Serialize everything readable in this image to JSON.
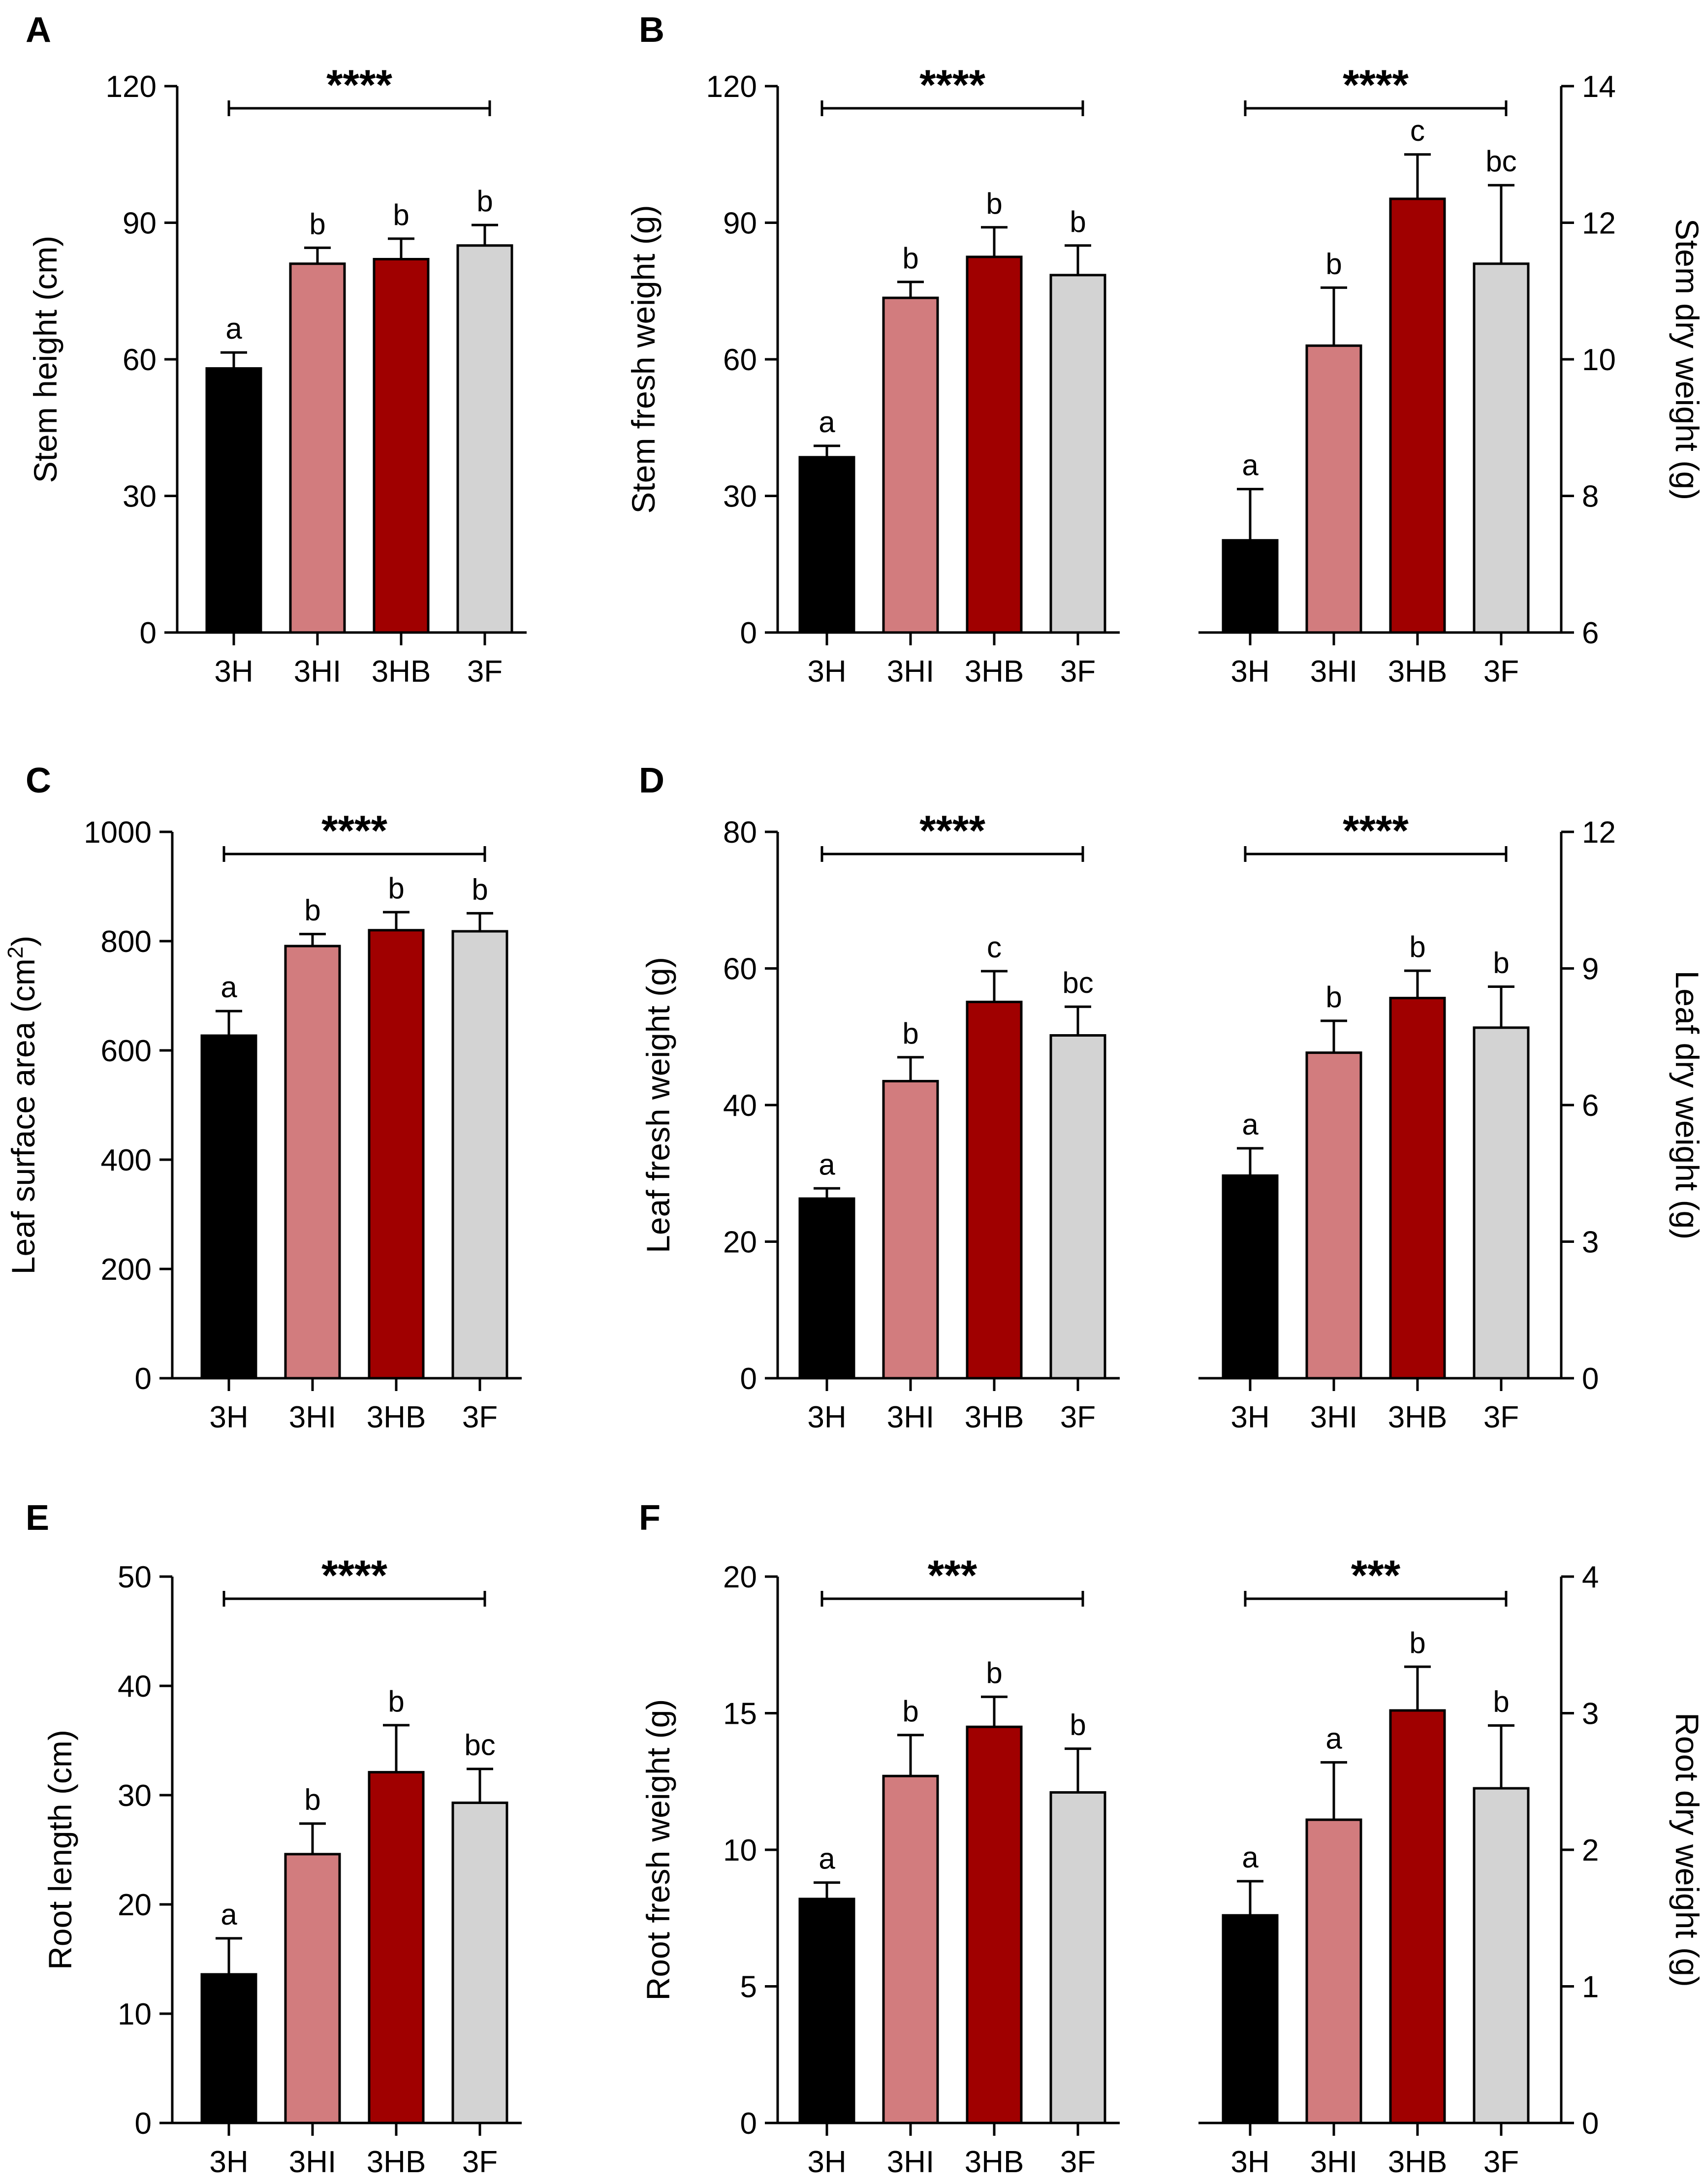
{
  "chart_data": [
    {
      "id": "A",
      "type": "bar",
      "panel_letter": "A",
      "ylabel": "Stem height (cm)",
      "ylabel_sup": "",
      "ylim": [
        0,
        120
      ],
      "yticks": [
        0,
        30,
        60,
        90,
        120
      ],
      "categories": [
        "3H",
        "3HI",
        "3HB",
        "3F"
      ],
      "values": [
        58,
        81,
        82,
        85
      ],
      "errors": [
        3.5,
        3.5,
        4.5,
        4.5
      ],
      "letters": [
        "a",
        "b",
        "b",
        "b"
      ],
      "significance": "****"
    },
    {
      "id": "B-fresh",
      "type": "bar",
      "panel_letter": "B",
      "ylabel": "Stem fresh weight (g)",
      "ylabel_sup": "",
      "ylim": [
        0,
        120
      ],
      "yticks": [
        0,
        30,
        60,
        90,
        120
      ],
      "categories": [
        "3H",
        "3HI",
        "3HB",
        "3F"
      ],
      "values": [
        38.5,
        73.5,
        82.5,
        78.5
      ],
      "errors": [
        2.5,
        3.5,
        6.5,
        6.5
      ],
      "letters": [
        "a",
        "b",
        "b",
        "b"
      ],
      "significance": "****"
    },
    {
      "id": "B-dry",
      "type": "bar",
      "panel_letter": "",
      "ylabel": "Stem dry weight (g)",
      "ylabel_sup": "",
      "ylim": [
        6,
        14
      ],
      "yticks": [
        6,
        8,
        10,
        12,
        14
      ],
      "categories": [
        "3H",
        "3HI",
        "3HB",
        "3F"
      ],
      "values": [
        7.35,
        10.2,
        12.35,
        11.4
      ],
      "errors": [
        0.75,
        0.85,
        0.65,
        1.15
      ],
      "letters": [
        "a",
        "b",
        "c",
        "bc"
      ],
      "significance": "****"
    },
    {
      "id": "C",
      "type": "bar",
      "panel_letter": "C",
      "ylabel": "Leaf surface area (cm",
      "ylabel_sup": "2",
      "ylim": [
        0,
        1000
      ],
      "yticks": [
        0,
        200,
        400,
        600,
        800,
        1000
      ],
      "categories": [
        "3H",
        "3HI",
        "3HB",
        "3F"
      ],
      "values": [
        627,
        791,
        820,
        818
      ],
      "errors": [
        45,
        22,
        33,
        33
      ],
      "letters": [
        "a",
        "b",
        "b",
        "b"
      ],
      "significance": "****"
    },
    {
      "id": "D-fresh",
      "type": "bar",
      "panel_letter": "D",
      "ylabel": "Leaf fresh weight (g)",
      "ylabel_sup": "",
      "ylim": [
        0,
        80
      ],
      "yticks": [
        0,
        20,
        40,
        60,
        80
      ],
      "categories": [
        "3H",
        "3HI",
        "3HB",
        "3F"
      ],
      "values": [
        26.3,
        43.5,
        55.1,
        50.2
      ],
      "errors": [
        1.5,
        3.5,
        4.5,
        4.2
      ],
      "letters": [
        "a",
        "b",
        "c",
        "bc"
      ],
      "significance": "****"
    },
    {
      "id": "D-dry",
      "type": "bar",
      "panel_letter": "",
      "ylabel": "Leaf dry weight (g)",
      "ylabel_sup": "",
      "ylim": [
        0,
        12
      ],
      "yticks": [
        0,
        3,
        6,
        9,
        12
      ],
      "categories": [
        "3H",
        "3HI",
        "3HB",
        "3F"
      ],
      "values": [
        4.45,
        7.15,
        8.35,
        7.7
      ],
      "errors": [
        0.6,
        0.7,
        0.6,
        0.9
      ],
      "letters": [
        "a",
        "b",
        "b",
        "b"
      ],
      "significance": "****"
    },
    {
      "id": "E",
      "type": "bar",
      "panel_letter": "E",
      "ylabel": "Root length (cm)",
      "ylabel_sup": "",
      "ylim": [
        0,
        50
      ],
      "yticks": [
        0,
        10,
        20,
        30,
        40,
        50
      ],
      "categories": [
        "3H",
        "3HI",
        "3HB",
        "3F"
      ],
      "values": [
        13.6,
        24.6,
        32.1,
        29.3
      ],
      "errors": [
        3.3,
        2.8,
        4.3,
        3.1
      ],
      "letters": [
        "a",
        "b",
        "b",
        "bc"
      ],
      "significance": "****"
    },
    {
      "id": "F-fresh",
      "type": "bar",
      "panel_letter": "F",
      "ylabel": "Root fresh weight (g)",
      "ylabel_sup": "",
      "ylim": [
        0,
        20
      ],
      "yticks": [
        0,
        5,
        10,
        15,
        20
      ],
      "categories": [
        "3H",
        "3HI",
        "3HB",
        "3F"
      ],
      "values": [
        8.2,
        12.7,
        14.5,
        12.1
      ],
      "errors": [
        0.6,
        1.5,
        1.1,
        1.6
      ],
      "letters": [
        "a",
        "b",
        "b",
        "b"
      ],
      "significance": "***"
    },
    {
      "id": "F-dry",
      "type": "bar",
      "panel_letter": "",
      "ylabel": "Root dry weight (g)",
      "ylabel_sup": "",
      "ylim": [
        0,
        4
      ],
      "yticks": [
        0,
        1,
        2,
        3,
        4
      ],
      "categories": [
        "3H",
        "3HI",
        "3HB",
        "3F"
      ],
      "values": [
        1.52,
        2.22,
        3.02,
        2.45
      ],
      "errors": [
        0.25,
        0.42,
        0.32,
        0.46
      ],
      "letters": [
        "a",
        "a",
        "b",
        "b"
      ],
      "significance": "***"
    }
  ],
  "colors": {
    "3H": "#000000",
    "3HI": "#d27c7e",
    "3HB": "#a00000",
    "3F": "#d3d3d3"
  }
}
